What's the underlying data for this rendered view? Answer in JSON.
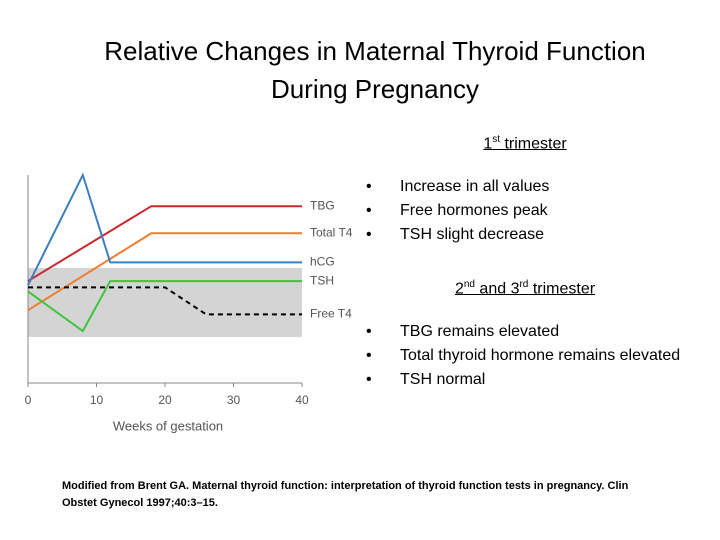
{
  "title": [
    "Relative Changes in Maternal Thyroid Function",
    "During Pregnancy"
  ],
  "chart_data": {
    "type": "line",
    "xlabel": "Weeks of gestation",
    "xlim": [
      0,
      40
    ],
    "xticks": [
      0,
      10,
      20,
      30,
      40
    ],
    "ylim": [
      0,
      100
    ],
    "series": [
      {
        "name": "TBG",
        "color": "#c8282d",
        "x": [
          0,
          18,
          40
        ],
        "values": [
          49,
          85,
          85
        ]
      },
      {
        "name": "Total T4",
        "color": "#f07d2e",
        "x": [
          0,
          18,
          40
        ],
        "values": [
          35,
          72,
          72
        ]
      },
      {
        "name": "hCG",
        "color": "#3b7fc4",
        "x": [
          0,
          8,
          12,
          40
        ],
        "values": [
          47,
          100,
          58,
          58
        ]
      },
      {
        "name": "TSH",
        "color": "#3ec43e",
        "x": [
          0,
          8,
          12,
          40
        ],
        "values": [
          44,
          25,
          49,
          49
        ]
      },
      {
        "name": "Free T4",
        "color": "#000000",
        "dashed": true,
        "x": [
          0,
          20,
          26,
          40
        ],
        "values": [
          46,
          46,
          33,
          33
        ]
      }
    ]
  },
  "notes": [
    {
      "heading": [
        {
          "text": "1"
        },
        {
          "sup": "st"
        },
        {
          "text": " trimester"
        }
      ],
      "bullets": [
        "Increase in all values",
        "Free hormones peak",
        "TSH slight decrease"
      ]
    },
    {
      "heading": [
        {
          "text": "2"
        },
        {
          "sup": "nd"
        },
        {
          "text": " and 3"
        },
        {
          "sup": "rd"
        },
        {
          "text": " trimester"
        }
      ],
      "bullets": [
        "TBG remains elevated",
        "Total thyroid hormone remains elevated",
        "TSH normal"
      ]
    }
  ],
  "citation": "Modified from Brent GA. Maternal thyroid function: interpretation of thyroid function tests in pregnancy. Clin Obstet Gynecol 1997;40:3–15."
}
